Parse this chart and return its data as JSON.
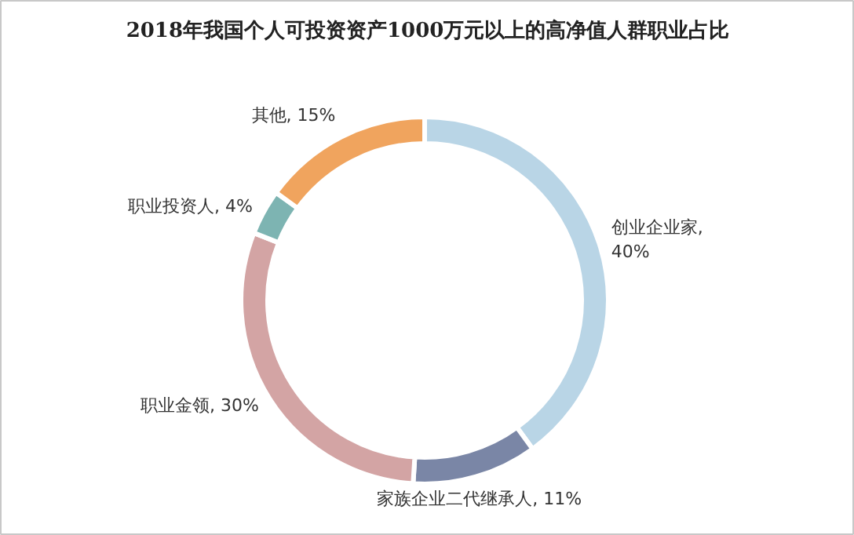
{
  "chart_data": {
    "type": "donut",
    "title": "2018年我国个人可投资资产1000万元以上的高净值人群职业占比",
    "categories": [
      "创业企业家",
      "家族企业二代继承人",
      "职业金领",
      "职业投资人",
      "其他"
    ],
    "values": [
      40,
      11,
      30,
      4,
      15
    ],
    "colors": [
      "#b9d5e6",
      "#7a86a6",
      "#d3a4a4",
      "#7db4b2",
      "#f0a45e"
    ],
    "value_labels": [
      ",\n40%",
      ", 11%",
      ", 30%",
      ", 4%",
      ", 15%"
    ]
  }
}
